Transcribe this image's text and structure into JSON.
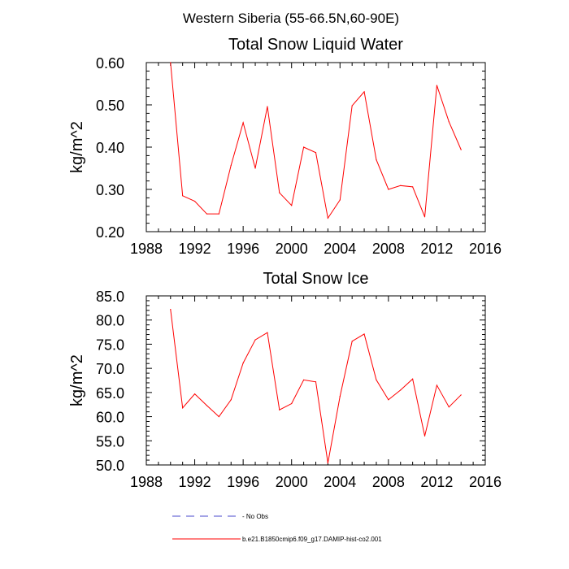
{
  "figure_title": "Western Siberia (55-66.5N,60-90E)",
  "legend": {
    "items": [
      {
        "label": "No Obs",
        "color": "#4a4acc",
        "dash": "dashed"
      },
      {
        "label": "b.e21.B1850cmip6.f09_g17.DAMIP-hist-co2.001",
        "color": "#ff0000",
        "dash": "solid"
      }
    ]
  },
  "chart_data": [
    {
      "type": "line",
      "title": "Total Snow Liquid Water",
      "xlabel": "",
      "ylabel": "kg/m^2",
      "xlim": [
        1988,
        2016
      ],
      "ylim": [
        0.2,
        0.6
      ],
      "xticks": [
        1988,
        1992,
        1996,
        2000,
        2004,
        2008,
        2012,
        2016
      ],
      "xtick_labels": [
        "1988",
        "1992",
        "1996",
        "2000",
        "2004",
        "2008",
        "2012",
        "2016"
      ],
      "yticks": [
        0.2,
        0.3,
        0.4,
        0.5,
        0.6
      ],
      "ytick_labels": [
        "0.20",
        "0.30",
        "0.40",
        "0.50",
        "0.60"
      ],
      "grid": false,
      "series": [
        {
          "name": "b.e21.B1850cmip6.f09_g17.DAMIP-hist-co2.001",
          "color": "#ff0000",
          "x": [
            1990,
            1991,
            1992,
            1993,
            1994,
            1995,
            1996,
            1997,
            1998,
            1999,
            2000,
            2001,
            2002,
            2003,
            2004,
            2005,
            2006,
            2007,
            2008,
            2009,
            2010,
            2011,
            2012,
            2013,
            2014
          ],
          "y": [
            0.6,
            0.285,
            0.272,
            0.242,
            0.242,
            0.357,
            0.458,
            0.35,
            0.496,
            0.292,
            0.262,
            0.4,
            0.387,
            0.232,
            0.275,
            0.498,
            0.531,
            0.37,
            0.3,
            0.309,
            0.306,
            0.235,
            0.546,
            0.46,
            0.394
          ]
        }
      ]
    },
    {
      "type": "line",
      "title": "Total Snow Ice",
      "xlabel": "",
      "ylabel": "kg/m^2",
      "xlim": [
        1988,
        2016
      ],
      "ylim": [
        50,
        85
      ],
      "xticks": [
        1988,
        1992,
        1996,
        2000,
        2004,
        2008,
        2012,
        2016
      ],
      "xtick_labels": [
        "1988",
        "1992",
        "1996",
        "2000",
        "2004",
        "2008",
        "2012",
        "2016"
      ],
      "yticks": [
        50,
        55,
        60,
        65,
        70,
        75,
        80,
        85
      ],
      "ytick_labels": [
        "50.0",
        "55.0",
        "60.0",
        "65.0",
        "70.0",
        "75.0",
        "80.0",
        "85.0"
      ],
      "grid": false,
      "series": [
        {
          "name": "b.e21.B1850cmip6.f09_g17.DAMIP-hist-co2.001",
          "color": "#ff0000",
          "x": [
            1990,
            1991,
            1992,
            1993,
            1994,
            1995,
            1996,
            1997,
            1998,
            1999,
            2000,
            2001,
            2002,
            2003,
            2004,
            2005,
            2006,
            2007,
            2008,
            2009,
            2010,
            2011,
            2012,
            2013,
            2014
          ],
          "y": [
            82.2,
            61.8,
            64.7,
            62.3,
            60.0,
            63.5,
            71.1,
            75.9,
            77.4,
            61.4,
            62.7,
            67.6,
            67.2,
            50.4,
            64.2,
            75.6,
            77.1,
            67.6,
            63.5,
            65.5,
            67.8,
            56.0,
            66.5,
            62.0,
            64.5
          ]
        }
      ]
    }
  ]
}
